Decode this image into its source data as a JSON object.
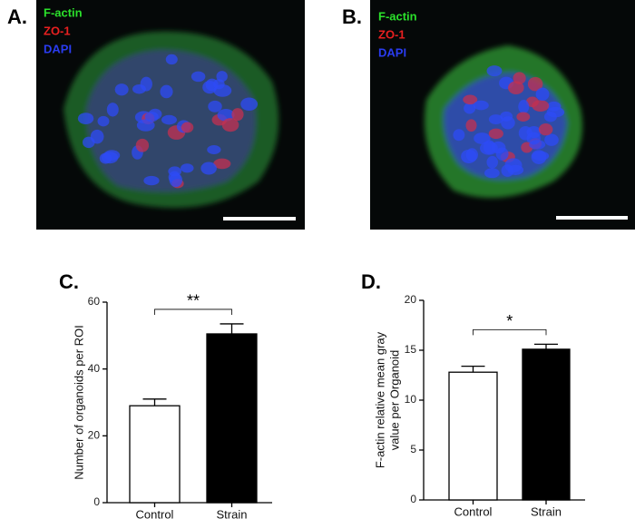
{
  "images": [
    {
      "label": "A.",
      "stains": [
        {
          "name": "F-actin",
          "color": "#2be02b"
        },
        {
          "name": "ZO-1",
          "color": "#e82020"
        },
        {
          "name": "DAPI",
          "color": "#2a3cf0"
        }
      ]
    },
    {
      "label": "B.",
      "stains": [
        {
          "name": "F-actin",
          "color": "#2be02b"
        },
        {
          "name": "ZO-1",
          "color": "#e82020"
        },
        {
          "name": "DAPI",
          "color": "#2a3cf0"
        }
      ]
    }
  ],
  "chart_data": [
    {
      "type": "bar",
      "panel_label": "C.",
      "ylabel": [
        "Number of organoids per ROI"
      ],
      "categories": [
        "Control",
        "Strain"
      ],
      "values": [
        29,
        50.5
      ],
      "errors": [
        2,
        3
      ],
      "colors": [
        "#ffffff",
        "#000000"
      ],
      "ylim": [
        0,
        60
      ],
      "yticks": [
        0,
        20,
        40,
        60
      ],
      "significance": "**"
    },
    {
      "type": "bar",
      "panel_label": "D.",
      "ylabel": [
        "F-actin relative mean gray",
        "value per Organoid"
      ],
      "categories": [
        "Control",
        "Strain"
      ],
      "values": [
        12.8,
        15.1
      ],
      "errors": [
        0.6,
        0.5
      ],
      "colors": [
        "#ffffff",
        "#000000"
      ],
      "ylim": [
        0,
        20
      ],
      "yticks": [
        0,
        5,
        10,
        15,
        20
      ],
      "significance": "*"
    }
  ]
}
